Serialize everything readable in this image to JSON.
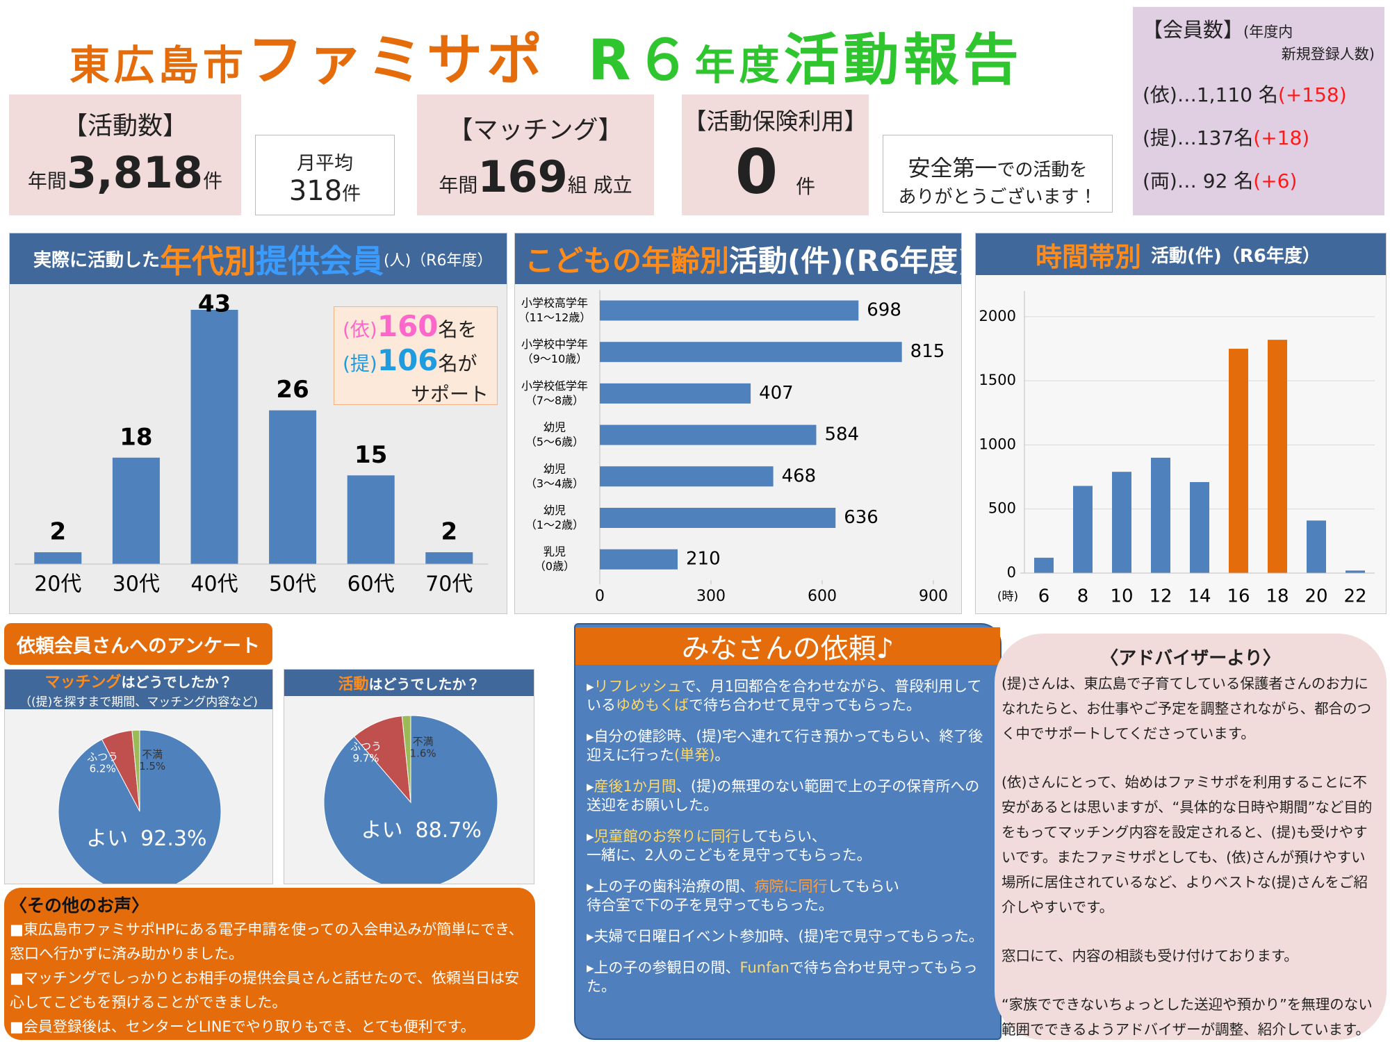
{
  "header": {
    "parts": [
      "東広島市",
      "ファミサポ",
      "R６",
      "年度",
      "活動報告"
    ]
  },
  "activity": {
    "heading": "【活動数】",
    "prefix": "年間",
    "value": "3,818",
    "unit": "件"
  },
  "monthly": {
    "label": "月平均",
    "value": "318",
    "unit": "件"
  },
  "matching": {
    "heading": "【マッチング】",
    "prefix": "年間",
    "value": "169",
    "unit": "組 成立"
  },
  "insurance": {
    "heading": "【活動保険利用】",
    "value": "0",
    "unit": "件"
  },
  "safety": {
    "strong": "安全第一",
    "rest": "での活動を",
    "line2": "ありがとうございます！"
  },
  "members": {
    "heading": "【会員数】",
    "note1": "(年度内",
    "note2": "新規登録人数)",
    "rows": [
      {
        "label": "(依)…1,110 名",
        "delta": "(+158)"
      },
      {
        "label": "(提)…137名",
        "delta": "(+18)"
      },
      {
        "label": "(両)… 92 名",
        "delta": "(+6)"
      }
    ]
  },
  "chart_data": [
    {
      "type": "bar",
      "title": [
        "実際に活動した",
        "年代別",
        "提供会員",
        "(人)（R6年度）"
      ],
      "categories": [
        "20代",
        "30代",
        "40代",
        "50代",
        "60代",
        "70代"
      ],
      "values": [
        2,
        18,
        43,
        26,
        15,
        2
      ],
      "color": "#4f81bd",
      "annotation": {
        "line1": [
          "(依)",
          "160",
          "名を"
        ],
        "line2": [
          "(提)",
          "106",
          "名が"
        ],
        "line3": "サポート"
      }
    },
    {
      "type": "barh",
      "title": [
        "こどもの年齢別",
        "活動(件)(R6年度)"
      ],
      "categories": [
        [
          "小学校高学年",
          "（11～12歳）"
        ],
        [
          "小学校中学年",
          "（9～10歳）"
        ],
        [
          "小学校低学年",
          "（7～8歳）"
        ],
        [
          "幼児",
          "（5～6歳）"
        ],
        [
          "幼児",
          "（3～4歳）"
        ],
        [
          "幼児",
          "（1～2歳）"
        ],
        [
          "乳児",
          "（0歳）"
        ]
      ],
      "values": [
        698,
        815,
        407,
        584,
        468,
        636,
        210
      ],
      "color": "#4f81bd",
      "xlim": [
        0,
        900
      ],
      "xticks": [
        0,
        300,
        600,
        900
      ]
    },
    {
      "type": "bar",
      "title": [
        "時間帯別",
        "活動(件)（R6年度）"
      ],
      "xlabel": "(時)",
      "categories": [
        "6",
        "8",
        "10",
        "12",
        "14",
        "16",
        "18",
        "20",
        "22"
      ],
      "values": [
        120,
        680,
        790,
        900,
        710,
        1750,
        1820,
        410,
        20
      ],
      "colors": [
        "#4f81bd",
        "#4f81bd",
        "#4f81bd",
        "#4f81bd",
        "#4f81bd",
        "#e46c0a",
        "#e46c0a",
        "#4f81bd",
        "#4f81bd"
      ],
      "ylim": [
        0,
        2200
      ],
      "yticks": [
        0,
        500,
        1000,
        1500,
        2000
      ],
      "grid": true
    },
    {
      "type": "pie",
      "title": [
        "マッチング",
        "はどうでしたか？"
      ],
      "subtitle": "（(提)を探すまで期間、マッチング内容など)",
      "labels": [
        "よい",
        "ふつう",
        "不満"
      ],
      "values": [
        92.3,
        6.2,
        1.5
      ],
      "value_labels": [
        "92.3%",
        "6.2%",
        "1.5%"
      ],
      "colors": [
        "#4f81bd",
        "#c0504d",
        "#9bbb59"
      ]
    },
    {
      "type": "pie",
      "title": [
        "活動",
        "はどうでしたか？"
      ],
      "labels": [
        "よい",
        "ふつう",
        "不満"
      ],
      "values": [
        88.7,
        9.7,
        1.6
      ],
      "value_labels": [
        "88.7%",
        "9.7%",
        "1.6%"
      ],
      "colors": [
        "#4f81bd",
        "#c0504d",
        "#9bbb59"
      ]
    }
  ],
  "survey": {
    "heading": "依頼会員さんへのアンケート"
  },
  "voices": {
    "heading": "〈その他のお声〉",
    "items": [
      "■東広島市ファミサポHPにある電子申請を使っての入会申込みが簡単にでき、窓口へ行かずに済み助かりました。",
      "■マッチングでしっかりとお相手の提供会員さんと話せたので、依頼当日は安心してこどもを預けることができました。",
      "■会員登録後は、センターとLINEでやり取りもでき、とても便利です。"
    ]
  },
  "requests": {
    "heading": "みなさんの依頼♪",
    "items": [
      [
        {
          "text": "▸"
        },
        {
          "text": "リフレッシュ",
          "color": "#ffd966"
        },
        {
          "text": "で、月1回都合を合わせながら、普段利用している"
        },
        {
          "text": "ゆめもくば",
          "color": "#ffd966"
        },
        {
          "text": "で待ち合わせて見守ってもらった。"
        }
      ],
      [
        {
          "text": "▸自分の健診時、(提)宅へ連れて行き預かってもらい、終了後迎えに行った"
        },
        {
          "text": "(単発)",
          "color": "#ffd966"
        },
        {
          "text": "。"
        }
      ],
      [
        {
          "text": "▸"
        },
        {
          "text": "産後1か月間",
          "color": "#ffd966"
        },
        {
          "text": "、(提)の無理のない範囲で上の子の保育所への送迎をお願いした。"
        }
      ],
      [
        {
          "text": "▸"
        },
        {
          "text": "児童館のお祭りに同行",
          "color": "#ffd966"
        },
        {
          "text": "してもらい、\n一緒に、2人のこどもを見守ってもらった。"
        }
      ],
      [
        {
          "text": "▸上の子の歯科治療の間、"
        },
        {
          "text": "病院に同行",
          "color": "#ffa040"
        },
        {
          "text": "してもらい\n待合室で下の子を見守ってもらった。"
        }
      ],
      [
        {
          "text": "▸夫婦で日曜日イベント参加時、(提)宅で見守ってもらった。"
        }
      ],
      [
        {
          "text": "▸上の子の参観日の間、"
        },
        {
          "text": "Funfan",
          "color": "#ffd966"
        },
        {
          "text": "で待ち合わせ見守ってもらった。"
        }
      ]
    ]
  },
  "advisor": {
    "heading": "〈アドバイザーより〉",
    "paragraphs": [
      "(提)さんは、東広島で子育てしている保護者さんのお力になれたらと、お仕事やご予定を調整されながら、都合のつく中でサポートしてくださっています。",
      "(依)さんにとって、始めはファミサポを利用することに不安があるとは思いますが、“具体的な日時や期間”など目的をもってマッチング内容を設定されると、(提)も受けやすいです。またファミサポとしても、(依)さんが預けやすい場所に居住されているなど、よりベストな(提)さんをご紹介しやすいです。",
      "窓口にて、内容の相談も受け付けております。",
      "“家族でできないちょっとした送迎や預かり”を無理のない範囲でできるようアドバイザーが調整、紹介しています。"
    ]
  }
}
